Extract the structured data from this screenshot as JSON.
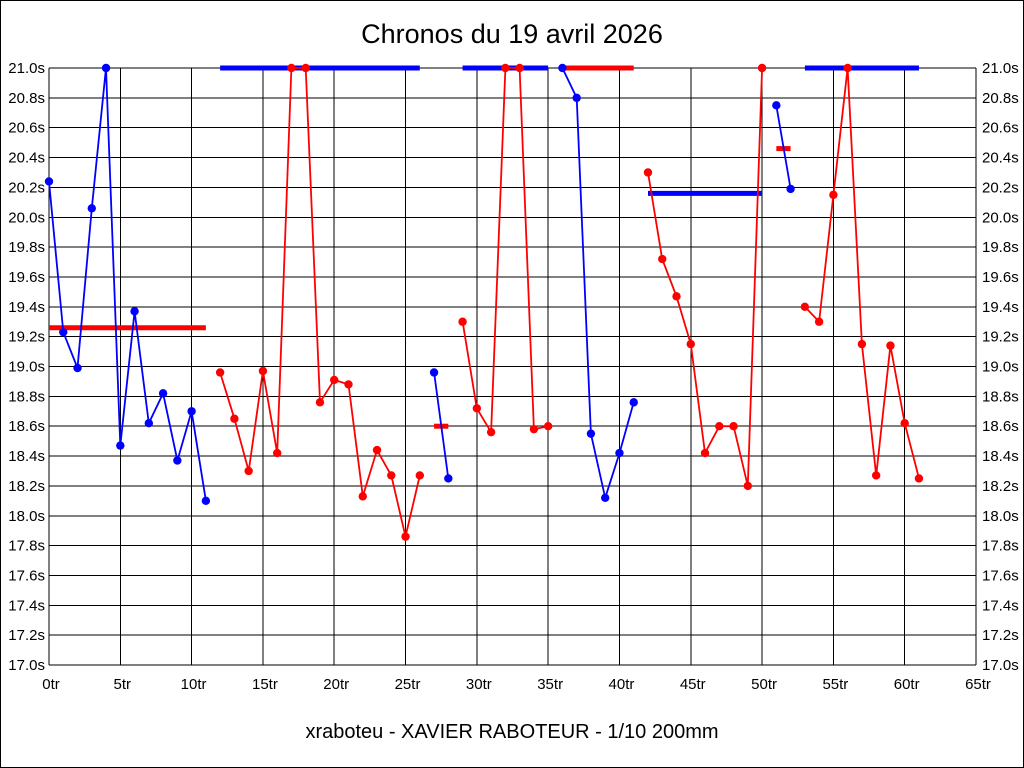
{
  "chart_data": {
    "type": "line",
    "title": "Chronos du 19 avril 2026",
    "caption": "xraboteu - XAVIER RABOTEUR - 1/10 200mm",
    "xlabel": "",
    "ylabel": "",
    "x_unit_suffix": "tr",
    "y_unit_suffix": "s",
    "xlim": [
      0,
      65
    ],
    "ylim": [
      17.0,
      21.0
    ],
    "x_tick_step": 5,
    "y_tick_step": 0.2,
    "grid": true,
    "legend": "none",
    "colors": {
      "blue_series": "#0000ff",
      "red_series": "#ff0000",
      "grid": "#000000",
      "background": "#ffffff"
    },
    "groups": [
      {
        "name": "laps-0-11",
        "color": "blue",
        "points": [
          [
            0,
            20.24
          ],
          [
            1,
            19.23
          ],
          [
            2,
            18.99
          ],
          [
            3,
            20.06
          ],
          [
            4,
            21.0
          ],
          [
            5,
            18.47
          ],
          [
            6,
            19.37
          ],
          [
            7,
            18.62
          ],
          [
            8,
            18.82
          ],
          [
            9,
            18.37
          ],
          [
            10,
            18.7
          ],
          [
            11,
            18.1
          ]
        ],
        "average": {
          "color": "red",
          "value": 19.26,
          "span": [
            0,
            11
          ]
        }
      },
      {
        "name": "laps-12-26",
        "color": "red",
        "points": [
          [
            12,
            18.96
          ],
          [
            13,
            18.65
          ],
          [
            14,
            18.3
          ],
          [
            15,
            18.97
          ],
          [
            16,
            18.42
          ],
          [
            17,
            21.0
          ],
          [
            18,
            21.0
          ],
          [
            19,
            18.76
          ],
          [
            20,
            18.91
          ],
          [
            21,
            18.88
          ],
          [
            22,
            18.13
          ],
          [
            23,
            18.44
          ],
          [
            24,
            18.27
          ],
          [
            25,
            17.86
          ],
          [
            26,
            18.27
          ]
        ],
        "average": {
          "color": "blue",
          "value": 21.0,
          "span": [
            12,
            26
          ]
        }
      },
      {
        "name": "laps-27-28",
        "color": "blue",
        "points": [
          [
            27,
            18.96
          ],
          [
            28,
            18.25
          ]
        ],
        "average": {
          "color": "red",
          "value": 18.6,
          "span": [
            27,
            28
          ]
        }
      },
      {
        "name": "laps-29-35",
        "color": "red",
        "points": [
          [
            29,
            19.3
          ],
          [
            30,
            18.72
          ],
          [
            31,
            18.56
          ],
          [
            32,
            21.0
          ],
          [
            33,
            21.0
          ],
          [
            34,
            18.58
          ],
          [
            35,
            18.6
          ]
        ],
        "average": {
          "color": "blue",
          "value": 21.0,
          "span": [
            29,
            35
          ]
        }
      },
      {
        "name": "laps-36-41",
        "color": "blue",
        "points": [
          [
            36,
            21.0
          ],
          [
            37,
            20.8
          ],
          [
            38,
            18.55
          ],
          [
            39,
            18.12
          ],
          [
            40,
            18.42
          ],
          [
            41,
            18.76
          ]
        ],
        "average": {
          "color": "red",
          "value": 21.0,
          "span": [
            36,
            41
          ]
        }
      },
      {
        "name": "laps-42-50",
        "color": "red",
        "points": [
          [
            42,
            20.3
          ],
          [
            43,
            19.72
          ],
          [
            44,
            19.47
          ],
          [
            45,
            19.15
          ],
          [
            46,
            18.42
          ],
          [
            47,
            18.6
          ],
          [
            48,
            18.6
          ],
          [
            49,
            18.2
          ],
          [
            50,
            21.0
          ]
        ],
        "average": {
          "color": "blue",
          "value": 20.16,
          "span": [
            42,
            50
          ]
        }
      },
      {
        "name": "laps-51-52",
        "color": "blue",
        "points": [
          [
            51,
            20.75
          ],
          [
            52,
            20.19
          ]
        ],
        "average": {
          "color": "red",
          "value": 20.46,
          "span": [
            51,
            52
          ]
        }
      },
      {
        "name": "laps-53-61",
        "color": "red",
        "points": [
          [
            53,
            19.4
          ],
          [
            54,
            19.3
          ],
          [
            55,
            20.15
          ],
          [
            56,
            21.0
          ],
          [
            57,
            19.15
          ],
          [
            58,
            18.27
          ],
          [
            59,
            19.14
          ],
          [
            60,
            18.62
          ],
          [
            61,
            18.25
          ]
        ],
        "average": {
          "color": "blue",
          "value": 21.0,
          "span": [
            53,
            61
          ]
        }
      }
    ]
  }
}
